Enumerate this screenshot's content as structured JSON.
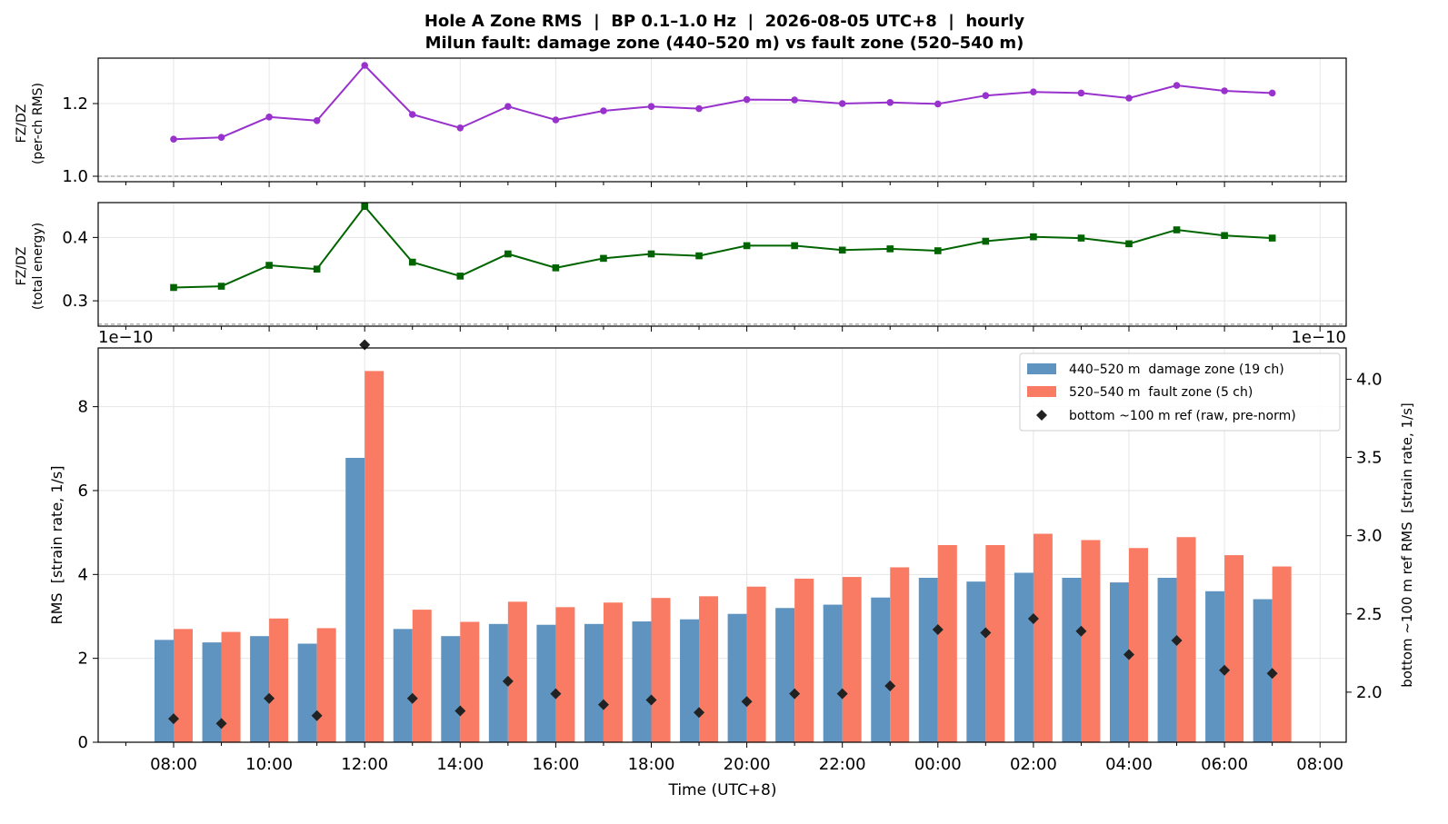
{
  "title": {
    "line1": "Hole A Zone RMS  |  BP 0.1–1.0 Hz  |  2026-08-05 UTC+8  |  hourly",
    "line2": "Milun fault: damage zone (440–520 m) vs fault zone (520–540 m)"
  },
  "colors": {
    "damage": "#5f93c0",
    "fault": "#fa7b63",
    "ref": "#222222",
    "ratio_ch": "#9932cc",
    "ratio_energy": "#006400"
  },
  "chart_data": [
    {
      "type": "line",
      "ylabel_line1": "FZ/DZ",
      "ylabel_line2": "(per-ch RMS)",
      "ylim": [
        0.985,
        1.325
      ],
      "yticks": [
        "1.0",
        "1.2"
      ],
      "ytick_values": [
        1.0,
        1.2
      ],
      "reference_line": 1.0,
      "grid": true,
      "x": [
        "08:00",
        "09:00",
        "10:00",
        "11:00",
        "12:00",
        "13:00",
        "14:00",
        "15:00",
        "16:00",
        "17:00",
        "18:00",
        "19:00",
        "20:00",
        "21:00",
        "22:00",
        "23:00",
        "00:00",
        "01:00",
        "02:00",
        "03:00",
        "04:00",
        "05:00",
        "06:00",
        "07:00"
      ],
      "values": [
        1.102,
        1.107,
        1.163,
        1.153,
        1.305,
        1.17,
        1.133,
        1.192,
        1.155,
        1.18,
        1.192,
        1.186,
        1.211,
        1.21,
        1.2,
        1.203,
        1.199,
        1.222,
        1.232,
        1.229,
        1.215,
        1.25,
        1.235,
        1.229
      ]
    },
    {
      "type": "line",
      "ylabel_line1": "FZ/DZ",
      "ylabel_line2": "(total energy)",
      "ylim": [
        0.26,
        0.455
      ],
      "yticks": [
        "0.3",
        "0.4"
      ],
      "ytick_values": [
        0.3,
        0.4
      ],
      "reference_line": 0.263,
      "grid": true,
      "x": [
        "08:00",
        "09:00",
        "10:00",
        "11:00",
        "12:00",
        "13:00",
        "14:00",
        "15:00",
        "16:00",
        "17:00",
        "18:00",
        "19:00",
        "20:00",
        "21:00",
        "22:00",
        "23:00",
        "00:00",
        "01:00",
        "02:00",
        "03:00",
        "04:00",
        "05:00",
        "06:00",
        "07:00"
      ],
      "values": [
        0.321,
        0.323,
        0.356,
        0.35,
        0.449,
        0.361,
        0.339,
        0.374,
        0.352,
        0.367,
        0.374,
        0.371,
        0.387,
        0.387,
        0.38,
        0.382,
        0.379,
        0.394,
        0.401,
        0.399,
        0.39,
        0.412,
        0.403,
        0.399
      ]
    },
    {
      "type": "bar",
      "xlabel": "Time (UTC+8)",
      "ylabel": "RMS  [strain rate, 1/s]",
      "ylabel_right": "bottom ~100 m ref RMS  [strain rate, 1/s]",
      "offset_left": "1e−10",
      "offset_right": "1e−10",
      "ylim": [
        0,
        9.4
      ],
      "ylim_right": [
        1.68,
        4.2
      ],
      "yticks": [
        "0",
        "2",
        "4",
        "6",
        "8"
      ],
      "ytick_values": [
        0,
        2,
        4,
        6,
        8
      ],
      "yticks_right": [
        "2.0",
        "2.5",
        "3.0",
        "3.5",
        "4.0"
      ],
      "ytick_values_right": [
        2.0,
        2.5,
        3.0,
        3.5,
        4.0
      ],
      "xticks": [
        "08:00",
        "10:00",
        "12:00",
        "14:00",
        "16:00",
        "18:00",
        "20:00",
        "22:00",
        "00:00",
        "02:00",
        "04:00",
        "06:00",
        "08:00"
      ],
      "grid": true,
      "legend_position": "top-right",
      "categories": [
        "08:00",
        "09:00",
        "10:00",
        "11:00",
        "12:00",
        "13:00",
        "14:00",
        "15:00",
        "16:00",
        "17:00",
        "18:00",
        "19:00",
        "20:00",
        "21:00",
        "22:00",
        "23:00",
        "00:00",
        "01:00",
        "02:00",
        "03:00",
        "04:00",
        "05:00",
        "06:00",
        "07:00"
      ],
      "series": [
        {
          "name": "440–520 m  damage zone (19 ch)",
          "values": [
            2.44,
            2.38,
            2.53,
            2.35,
            6.78,
            2.7,
            2.53,
            2.82,
            2.8,
            2.82,
            2.88,
            2.93,
            3.06,
            3.2,
            3.28,
            3.45,
            3.92,
            3.83,
            4.04,
            3.92,
            3.81,
            3.92,
            3.6,
            3.41
          ]
        },
        {
          "name": "520–540 m  fault zone (5 ch)",
          "values": [
            2.7,
            2.63,
            2.95,
            2.72,
            8.85,
            3.16,
            2.87,
            3.35,
            3.22,
            3.33,
            3.44,
            3.48,
            3.71,
            3.9,
            3.94,
            4.17,
            4.7,
            4.7,
            4.97,
            4.82,
            4.63,
            4.89,
            4.46,
            4.19
          ]
        },
        {
          "name": "bottom ~100 m ref (raw, pre-norm)",
          "axis": "right",
          "values": [
            1.83,
            1.8,
            1.96,
            1.85,
            4.22,
            1.96,
            1.88,
            2.07,
            1.99,
            1.92,
            1.95,
            1.87,
            1.94,
            1.99,
            1.99,
            2.04,
            2.4,
            2.38,
            2.47,
            2.39,
            2.24,
            2.33,
            2.14,
            2.12
          ]
        }
      ]
    }
  ]
}
